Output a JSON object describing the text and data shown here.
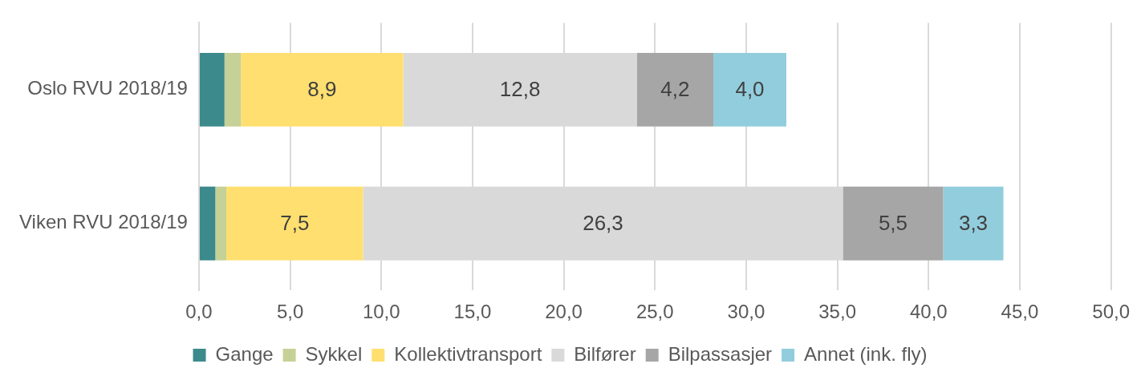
{
  "chart_data": {
    "type": "bar",
    "orientation": "horizontal",
    "stacked": true,
    "categories": [
      "Oslo RVU 2018/19",
      "Viken RVU 2018/19"
    ],
    "series": [
      {
        "name": "Gange",
        "color": "#3c8a8c",
        "values": [
          1.4,
          0.9
        ],
        "value_labels": [
          null,
          null
        ]
      },
      {
        "name": "Sykkel",
        "color": "#c5d196",
        "values": [
          0.9,
          0.6
        ],
        "value_labels": [
          null,
          null
        ]
      },
      {
        "name": "Kollektivtransport",
        "color": "#ffdf70",
        "values": [
          8.9,
          7.5
        ],
        "value_labels": [
          "8,9",
          "7,5"
        ]
      },
      {
        "name": "Bilfører",
        "color": "#d9d9d9",
        "values": [
          12.8,
          26.3
        ],
        "value_labels": [
          "12,8",
          "26,3"
        ]
      },
      {
        "name": "Bilpassasjer",
        "color": "#a6a6a6",
        "values": [
          4.2,
          5.5
        ],
        "value_labels": [
          "4,2",
          "5,5"
        ]
      },
      {
        "name": "Annet (ink. fly)",
        "color": "#92cddd",
        "values": [
          4.0,
          3.3
        ],
        "value_labels": [
          "4,0",
          "3,3"
        ]
      }
    ],
    "xlim": [
      0,
      50
    ],
    "xticks": [
      {
        "value": 0,
        "label": "0,0"
      },
      {
        "value": 5,
        "label": "5,0"
      },
      {
        "value": 10,
        "label": "10,0"
      },
      {
        "value": 15,
        "label": "15,0"
      },
      {
        "value": 20,
        "label": "20,0"
      },
      {
        "value": 25,
        "label": "25,0"
      },
      {
        "value": 30,
        "label": "30,0"
      },
      {
        "value": 35,
        "label": "35,0"
      },
      {
        "value": 40,
        "label": "40,0"
      },
      {
        "value": 45,
        "label": "45,0"
      },
      {
        "value": 50,
        "label": "50,0"
      }
    ],
    "grid": "x",
    "legend": "bottom"
  }
}
